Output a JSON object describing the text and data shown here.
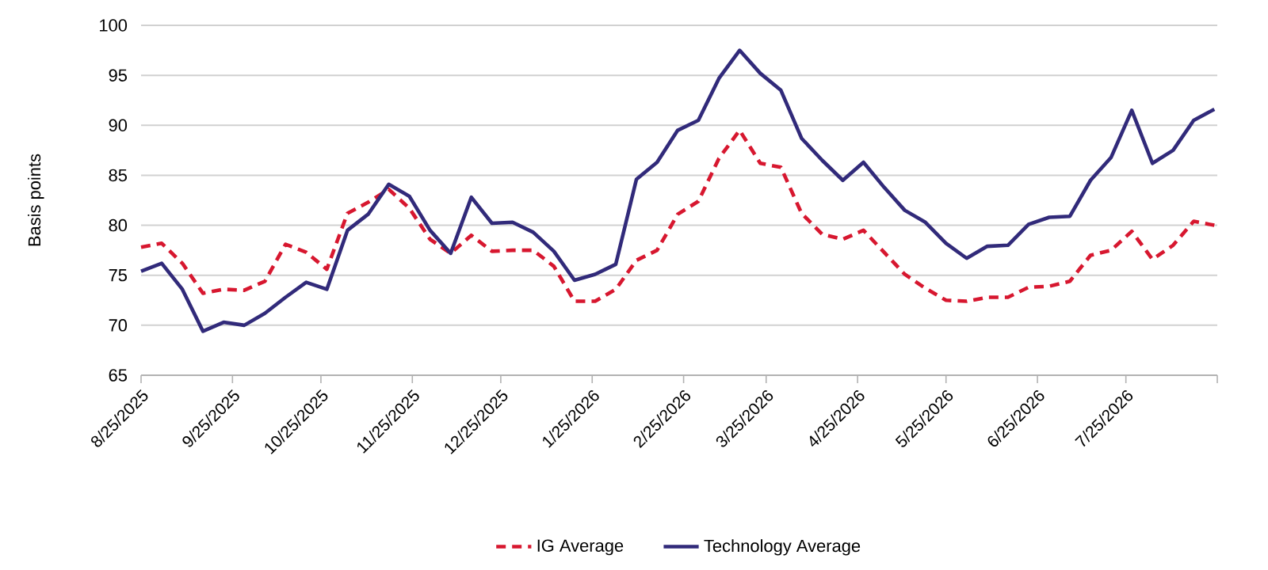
{
  "chart_data": {
    "type": "line",
    "ylabel": "Basis points",
    "x": [
      "2025-08-25",
      "2025-09-01",
      "2025-09-08",
      "2025-09-15",
      "2025-09-22",
      "2025-09-29",
      "2025-10-06",
      "2025-10-13",
      "2025-10-20",
      "2025-10-27",
      "2025-11-03",
      "2025-11-10",
      "2025-11-17",
      "2025-11-24",
      "2025-12-01",
      "2025-12-08",
      "2025-12-15",
      "2025-12-22",
      "2025-12-29",
      "2026-01-05",
      "2026-01-12",
      "2026-01-19",
      "2026-01-26",
      "2026-02-02",
      "2026-02-09",
      "2026-02-16",
      "2026-02-23",
      "2026-03-02",
      "2026-03-09",
      "2026-03-16",
      "2026-03-23",
      "2026-03-30",
      "2026-04-06",
      "2026-04-13",
      "2026-04-20",
      "2026-04-27",
      "2026-05-04",
      "2026-05-11",
      "2026-05-18",
      "2026-05-25",
      "2026-06-01",
      "2026-06-08",
      "2026-06-15",
      "2026-06-22",
      "2026-06-29",
      "2026-07-06",
      "2026-07-13",
      "2026-07-20",
      "2026-07-27",
      "2026-08-03",
      "2026-08-10",
      "2026-08-17",
      "2026-08-24"
    ],
    "series": [
      {
        "name": "IG Average",
        "color": "#d7172f",
        "line_style": "dashed",
        "values": [
          77.8,
          78.2,
          76.2,
          73.2,
          73.6,
          73.5,
          74.4,
          78.1,
          77.3,
          75.6,
          81.2,
          82.3,
          83.6,
          81.7,
          78.6,
          77.2,
          79.0,
          77.4,
          77.5,
          77.5,
          75.9,
          72.4,
          72.4,
          73.6,
          76.5,
          77.5,
          81.1,
          82.4,
          86.7,
          89.5,
          86.2,
          85.8,
          81.2,
          79.1,
          78.6,
          79.5,
          77.3,
          75.1,
          73.7,
          72.5,
          72.4,
          72.8,
          72.8,
          73.8,
          73.9,
          74.4,
          77.0,
          77.5,
          79.4,
          76.6,
          78.0,
          80.4,
          80.0
        ]
      },
      {
        "name": "Technology Average",
        "color": "#312a7a",
        "line_style": "solid",
        "values": [
          75.4,
          76.2,
          73.6,
          69.4,
          70.3,
          70.0,
          71.2,
          72.8,
          74.3,
          73.6,
          79.5,
          81.1,
          84.1,
          82.9,
          79.5,
          77.2,
          82.8,
          80.2,
          80.3,
          79.3,
          77.4,
          74.5,
          75.1,
          76.1,
          84.6,
          86.3,
          89.5,
          90.5,
          94.7,
          97.5,
          95.2,
          93.5,
          88.7,
          86.5,
          84.5,
          86.3,
          83.8,
          81.5,
          80.3,
          78.2,
          76.7,
          77.9,
          78.0,
          80.1,
          80.8,
          80.9,
          84.5,
          86.8,
          91.5,
          86.2,
          87.5,
          90.5,
          91.6
        ]
      }
    ],
    "xlim": [
      "2025-08-25",
      "2026-08-25"
    ],
    "xticks": [
      {
        "value": "2025-08-25",
        "label": "8/25/2025"
      },
      {
        "value": "2025-09-25",
        "label": "9/25/2025"
      },
      {
        "value": "2025-10-25",
        "label": "10/25/2025"
      },
      {
        "value": "2025-11-25",
        "label": "11/25/2025"
      },
      {
        "value": "2025-12-25",
        "label": "12/25/2025"
      },
      {
        "value": "2026-01-25",
        "label": "1/25/2026"
      },
      {
        "value": "2026-02-25",
        "label": "2/25/2026"
      },
      {
        "value": "2026-03-25",
        "label": "3/25/2026"
      },
      {
        "value": "2026-04-25",
        "label": "4/25/2026"
      },
      {
        "value": "2026-05-25",
        "label": "5/25/2026"
      },
      {
        "value": "2026-06-25",
        "label": "6/25/2026"
      },
      {
        "value": "2026-07-25",
        "label": "7/25/2026"
      },
      {
        "value": "2026-08-25",
        "label": null
      }
    ],
    "ylim": [
      65,
      100
    ],
    "yticks": [
      65,
      70,
      75,
      80,
      85,
      90,
      95,
      100
    ],
    "grid": "y",
    "legend": "bottom"
  }
}
